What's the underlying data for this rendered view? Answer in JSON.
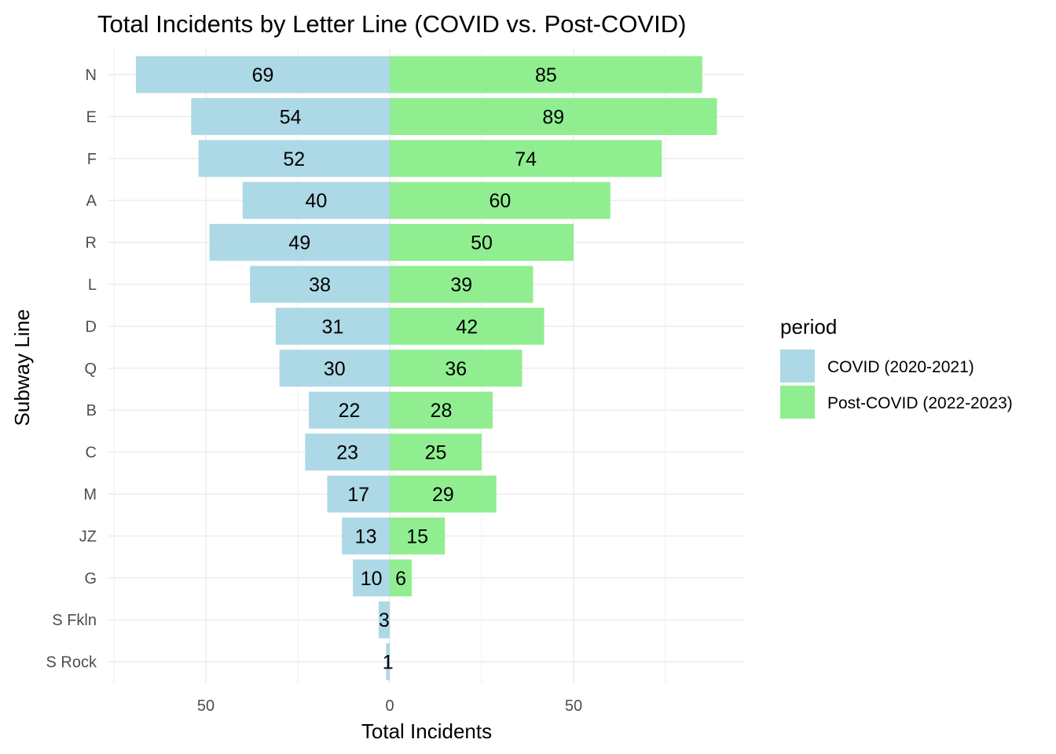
{
  "chart_data": {
    "type": "bar",
    "orientation": "horizontal-diverging",
    "title": "Total Incidents by Letter Line (COVID vs. Post-COVID)",
    "xlabel": "Total Incidents",
    "ylabel": "Subway Line",
    "x_ticks": [
      "50",
      "0",
      "50"
    ],
    "xlim": [
      -75,
      97
    ],
    "grid": true,
    "legend_position": "right",
    "legend_title": "period",
    "categories": [
      "N",
      "E",
      "F",
      "A",
      "R",
      "L",
      "D",
      "Q",
      "B",
      "C",
      "M",
      "JZ",
      "G",
      "S Fkln",
      "S Rock"
    ],
    "series": [
      {
        "name": "COVID (2020-2021)",
        "color": "#add8e6",
        "direction": "left",
        "values": [
          69,
          54,
          52,
          40,
          49,
          38,
          31,
          30,
          22,
          23,
          17,
          13,
          10,
          3,
          1
        ]
      },
      {
        "name": "Post-COVID (2022-2023)",
        "color": "#90ee90",
        "direction": "right",
        "values": [
          85,
          89,
          74,
          60,
          50,
          39,
          42,
          36,
          28,
          25,
          29,
          15,
          6,
          0,
          0
        ]
      }
    ]
  }
}
